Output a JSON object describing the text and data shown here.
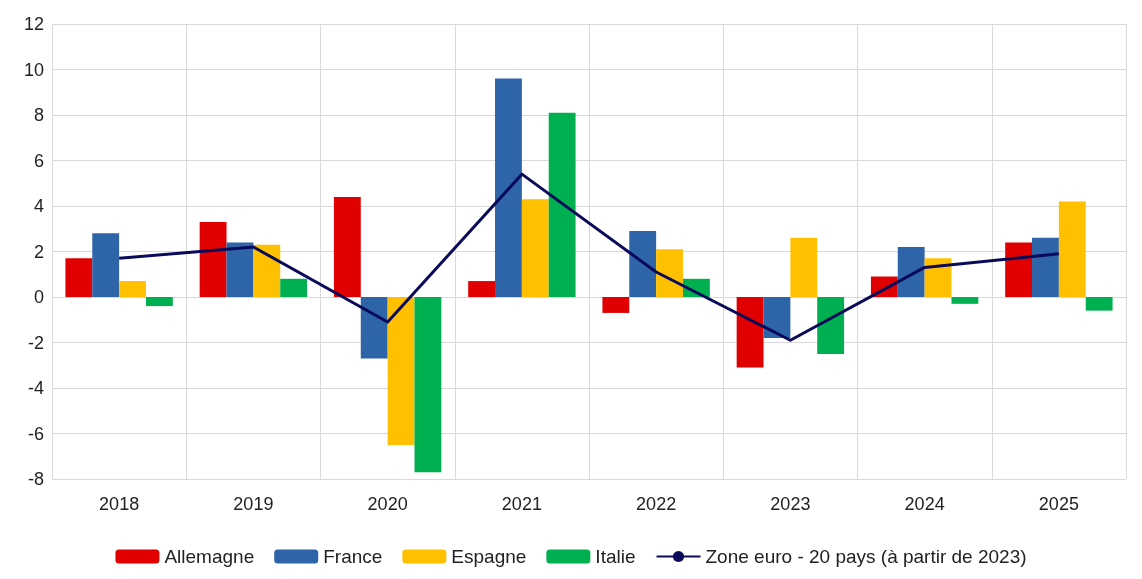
{
  "chart_data": {
    "type": "bar",
    "categories": [
      "2018",
      "2019",
      "2020",
      "2021",
      "2022",
      "2023",
      "2024",
      "2025"
    ],
    "series": [
      {
        "name": "Allemagne",
        "color": "#e00000",
        "values": [
          1.7,
          3.3,
          4.4,
          0.7,
          -0.7,
          -3.1,
          0.9,
          2.4
        ]
      },
      {
        "name": "France",
        "color": "#2e64a8",
        "values": [
          2.8,
          2.4,
          -2.7,
          9.6,
          2.9,
          -1.8,
          2.2,
          2.6
        ]
      },
      {
        "name": "Espagne",
        "color": "#ffc000",
        "values": [
          0.7,
          2.3,
          -6.5,
          4.3,
          2.1,
          2.6,
          1.7,
          4.2
        ]
      },
      {
        "name": "Italie",
        "color": "#00b050",
        "values": [
          -0.4,
          0.8,
          -7.7,
          8.1,
          0.8,
          -2.5,
          -0.3,
          -0.6
        ]
      },
      {
        "name": "Zone euro - 20 pays (à partir de 2023)",
        "type": "line",
        "color": "#0a0a5a",
        "values": [
          1.7,
          2.2,
          -1.1,
          5.4,
          1.1,
          -1.9,
          1.3,
          1.9
        ]
      }
    ],
    "ylim": [
      -8,
      12
    ],
    "yticks": [
      -8,
      -6,
      -4,
      -2,
      0,
      2,
      4,
      6,
      8,
      10,
      12
    ],
    "grid": true,
    "legend": "bottom",
    "marker": "none"
  }
}
